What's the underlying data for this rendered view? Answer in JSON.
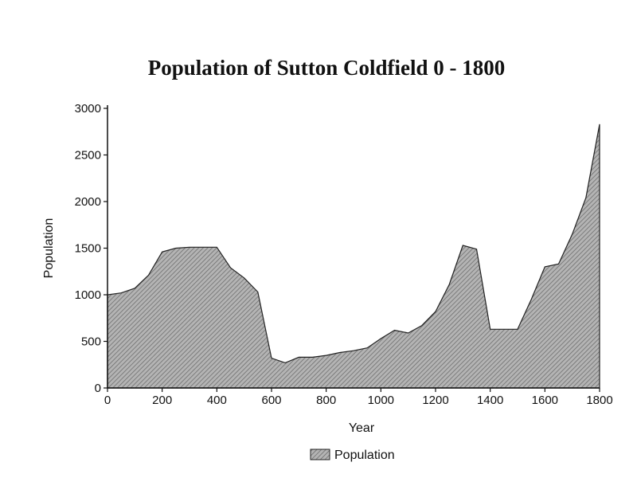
{
  "chart_data": {
    "type": "area",
    "title": "Population of Sutton Coldfield 0 - 1800",
    "xlabel": "Year",
    "ylabel": "Population",
    "xlim": [
      0,
      1800
    ],
    "ylim": [
      0,
      3000
    ],
    "xticks": [
      0,
      200,
      400,
      600,
      800,
      1000,
      1200,
      1400,
      1600,
      1800
    ],
    "yticks": [
      0,
      500,
      1000,
      1500,
      2000,
      2500,
      3000
    ],
    "x_tick_labels": [
      "0",
      "200",
      "400",
      "600",
      "800",
      "1000",
      "1200",
      "1400",
      "1600",
      "1800"
    ],
    "y_tick_labels": [
      "0",
      "500",
      "1000",
      "1500",
      "2000",
      "2500",
      "3000"
    ],
    "legend": "bottom-center",
    "grid": false,
    "colors": {
      "fill": "#9a9a9a",
      "stroke": "#222222"
    },
    "series": [
      {
        "name": "Population",
        "x": [
          0,
          50,
          100,
          150,
          200,
          250,
          300,
          350,
          400,
          450,
          500,
          550,
          600,
          650,
          700,
          750,
          800,
          850,
          900,
          950,
          1000,
          1050,
          1100,
          1150,
          1200,
          1250,
          1300,
          1350,
          1400,
          1450,
          1500,
          1550,
          1600,
          1650,
          1700,
          1750,
          1800
        ],
        "values": [
          1000,
          1020,
          1070,
          1210,
          1460,
          1500,
          1510,
          1510,
          1510,
          1290,
          1180,
          1030,
          320,
          270,
          330,
          330,
          350,
          380,
          400,
          430,
          530,
          620,
          590,
          670,
          820,
          1110,
          1530,
          1490,
          630,
          630,
          630,
          950,
          1300,
          1330,
          1650,
          2040,
          2830
        ]
      }
    ]
  }
}
